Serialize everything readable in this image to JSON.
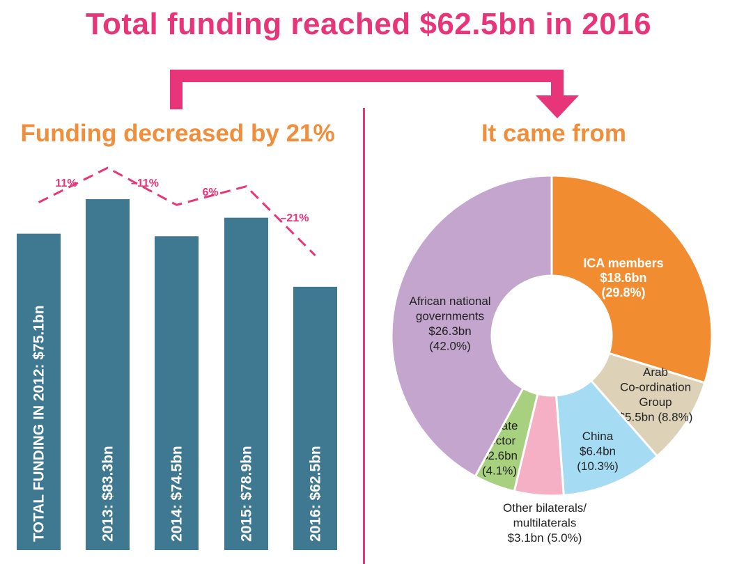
{
  "header": {
    "title": "Total funding reached $62.5bn in 2016",
    "left_title": "Funding decreased by 21%",
    "right_title": "It came from"
  },
  "colors": {
    "accent": "#e8357a",
    "subtitle": "#f08e3b",
    "bar": "#3f7891"
  },
  "chart_data": [
    {
      "type": "bar",
      "title": "Funding decreased by 21%",
      "categories": [
        "2012",
        "2013",
        "2014",
        "2015",
        "2016"
      ],
      "values": [
        75.1,
        83.3,
        74.5,
        78.9,
        62.5
      ],
      "unit": "$bn",
      "bar_labels": [
        "TOTAL FUNDING IN 2012: $75.1bn",
        "2013: $83.3bn",
        "2014: $74.5bn",
        "2015: $78.9bn",
        "2016: $62.5bn"
      ],
      "changes": [
        "11%",
        "–11%",
        "6%",
        "–21%"
      ],
      "ylim": [
        0,
        100
      ],
      "grid": false
    },
    {
      "type": "pie",
      "title": "It came from",
      "donut": true,
      "slices": [
        {
          "name": "ICA members",
          "value": 18.6,
          "percent": 29.8,
          "color": "#f28c31",
          "lines": [
            "ICA members",
            "$18.6bn",
            "(29.8%)"
          ]
        },
        {
          "name": "Arab Co-ordination Group",
          "value": 5.5,
          "percent": 8.8,
          "color": "#ddd2b8",
          "lines": [
            "Arab",
            "Co-ordination",
            "Group",
            "$5.5bn (8.8%)"
          ]
        },
        {
          "name": "China",
          "value": 6.4,
          "percent": 10.3,
          "color": "#a6dcf3",
          "lines": [
            "China",
            "$6.4bn",
            "(10.3%)"
          ]
        },
        {
          "name": "Other bilaterals/multilaterals",
          "value": 3.1,
          "percent": 5.0,
          "color": "#f5b0c6",
          "lines": [
            "Other bilaterals/",
            "multilaterals",
            "$3.1bn (5.0%)"
          ]
        },
        {
          "name": "Private sector",
          "value": 2.6,
          "percent": 4.1,
          "color": "#a7d07f",
          "lines": [
            "Private",
            "sector",
            "$2.6bn",
            "(4.1%)"
          ]
        },
        {
          "name": "African national governments",
          "value": 26.3,
          "percent": 42.0,
          "color": "#c3a5cd",
          "lines": [
            "African national",
            "governments",
            "$26.3bn",
            "(42.0%)"
          ]
        }
      ]
    }
  ]
}
